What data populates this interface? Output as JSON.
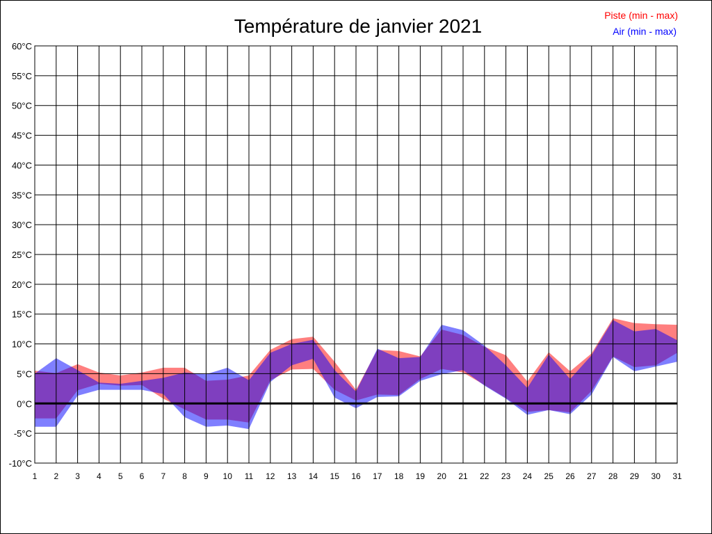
{
  "chart_data": {
    "type": "area",
    "title": "Température de janvier 2021",
    "xlabel": "",
    "ylabel": "",
    "x": [
      1,
      2,
      3,
      4,
      5,
      6,
      7,
      8,
      9,
      10,
      11,
      12,
      13,
      14,
      15,
      16,
      17,
      18,
      19,
      20,
      21,
      22,
      23,
      24,
      25,
      26,
      27,
      28,
      29,
      30,
      31
    ],
    "ylim": [
      -10,
      60
    ],
    "y_ticks": [
      -10,
      -5,
      0,
      5,
      10,
      15,
      20,
      25,
      30,
      35,
      40,
      45,
      50,
      55,
      60
    ],
    "y_tick_suffix": "°C",
    "grid": true,
    "legend_position": "top-right",
    "series": [
      {
        "name": "Piste (min - max)",
        "color": "#ff0000",
        "min": [
          -2.5,
          -2.5,
          2.2,
          3.3,
          3.0,
          3.1,
          0.8,
          -1.0,
          -2.7,
          -2.7,
          -3.2,
          3.9,
          5.7,
          5.8,
          2.3,
          0.5,
          1.5,
          1.4,
          4.1,
          5.8,
          5.2,
          3.1,
          0.9,
          -1.4,
          -1.1,
          -1.5,
          2.1,
          7.9,
          6.1,
          6.4,
          8.5
        ],
        "max": [
          5.5,
          5.1,
          6.6,
          5.2,
          4.7,
          5.2,
          6.0,
          6.0,
          3.8,
          4.0,
          4.7,
          9.0,
          10.8,
          11.2,
          7.0,
          2.3,
          9.0,
          8.8,
          7.9,
          12.4,
          11.5,
          9.5,
          8.1,
          3.7,
          8.6,
          5.4,
          8.4,
          14.3,
          13.5,
          13.3,
          13.2
        ]
      },
      {
        "name": "Air (min - max)",
        "color": "#0000ff",
        "min": [
          -3.9,
          -3.9,
          1.3,
          2.3,
          2.3,
          2.3,
          1.6,
          -2.3,
          -3.9,
          -3.7,
          -4.3,
          3.6,
          6.4,
          7.5,
          1.0,
          -0.8,
          1.1,
          1.2,
          3.8,
          4.9,
          5.6,
          3.0,
          0.8,
          -1.9,
          -1.1,
          -1.8,
          1.5,
          7.8,
          5.4,
          6.2,
          7.0
        ],
        "max": [
          5.0,
          7.6,
          5.6,
          3.5,
          3.3,
          3.8,
          4.3,
          5.2,
          4.9,
          6.0,
          3.9,
          8.5,
          10.0,
          10.7,
          5.6,
          2.0,
          9.2,
          7.6,
          7.8,
          13.2,
          12.3,
          9.7,
          6.4,
          2.6,
          8.2,
          4.1,
          8.1,
          14.0,
          12.1,
          12.5,
          10.6
        ]
      }
    ]
  }
}
